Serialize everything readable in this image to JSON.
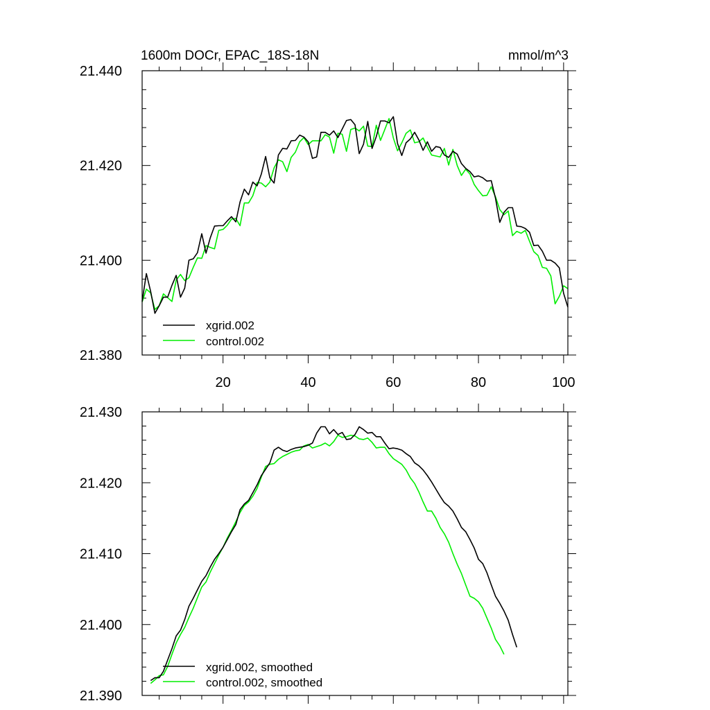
{
  "chart_data": [
    {
      "type": "line",
      "title": "1600m DOCr, EPAC_18S-18N",
      "units": "mmol/m^3",
      "xlim": [
        1,
        101
      ],
      "ylim": [
        21.38,
        21.44
      ],
      "xticks": [
        20,
        40,
        60,
        80,
        100
      ],
      "xtick_labels": [
        "20",
        "40",
        "60",
        "80",
        "100"
      ],
      "yticks": [
        21.38,
        21.4,
        21.42,
        21.44
      ],
      "ytick_labels": [
        "21.380",
        "21.400",
        "21.420",
        "21.440"
      ],
      "legend_position": "bottom-left",
      "series": [
        {
          "name": "xgrid.002",
          "color": "#000000",
          "x_start": 1,
          "values": [
            21.3913,
            21.3972,
            21.3934,
            21.3888,
            21.3904,
            21.3922,
            21.3922,
            21.3947,
            21.3968,
            21.3922,
            21.3941,
            21.4,
            21.4003,
            21.4016,
            21.4056,
            21.4015,
            21.4047,
            21.4072,
            21.4073,
            21.4073,
            21.4083,
            21.4092,
            21.4081,
            21.4123,
            21.415,
            21.4138,
            21.4165,
            21.4157,
            21.4182,
            21.4219,
            21.4174,
            21.4163,
            21.4222,
            21.4236,
            21.4235,
            21.4252,
            21.4253,
            21.4264,
            21.426,
            21.425,
            21.4215,
            21.4218,
            21.427,
            21.427,
            21.4264,
            21.4273,
            21.4259,
            21.4277,
            21.4295,
            21.4297,
            21.4286,
            21.4225,
            21.4245,
            21.4293,
            21.4236,
            21.4261,
            21.4294,
            21.4294,
            21.429,
            21.4303,
            21.4246,
            21.4221,
            21.4248,
            21.4256,
            21.427,
            21.4254,
            21.4232,
            21.425,
            21.423,
            21.424,
            21.4238,
            21.4222,
            21.4217,
            21.423,
            21.4224,
            21.4204,
            21.4194,
            21.4187,
            21.4176,
            21.4178,
            21.4174,
            21.4167,
            21.4168,
            21.4131,
            21.408,
            21.4101,
            21.4111,
            21.4111,
            21.4072,
            21.4071,
            21.4067,
            21.4059,
            21.4031,
            21.4032,
            21.4019,
            21.4,
            21.4,
            21.3994,
            21.3984,
            21.393,
            21.3901
          ]
        },
        {
          "name": "control.002",
          "color": "#00ee00",
          "x_start": 1,
          "values": [
            21.3912,
            21.3939,
            21.3931,
            21.3896,
            21.3904,
            21.3929,
            21.3921,
            21.3913,
            21.3958,
            21.397,
            21.3957,
            21.3963,
            21.3985,
            21.4005,
            21.4004,
            21.4031,
            21.4027,
            21.4024,
            21.4063,
            21.4065,
            21.4074,
            21.4087,
            21.4088,
            21.4073,
            21.4121,
            21.4121,
            21.4136,
            21.4164,
            21.4163,
            21.4155,
            21.4165,
            21.4195,
            21.4212,
            21.4208,
            21.4187,
            21.4217,
            21.4228,
            21.425,
            21.4259,
            21.4244,
            21.4252,
            21.4252,
            21.4252,
            21.4265,
            21.426,
            21.4226,
            21.4268,
            21.4266,
            21.423,
            21.4276,
            21.4279,
            21.4273,
            21.4283,
            21.4241,
            21.424,
            21.4285,
            21.4253,
            21.4276,
            21.4299,
            21.4258,
            21.4231,
            21.4248,
            21.4268,
            21.4275,
            21.4248,
            21.425,
            21.4258,
            21.4239,
            21.4222,
            21.422,
            21.4218,
            21.4236,
            21.4201,
            21.4234,
            21.42,
            21.4179,
            21.4192,
            21.4182,
            21.416,
            21.4147,
            21.4136,
            21.4137,
            21.4155,
            21.4134,
            21.4107,
            21.4096,
            21.4104,
            21.4052,
            21.4061,
            21.4057,
            21.4063,
            21.404,
            21.4018,
            21.401,
            21.3985,
            21.3983,
            21.3967,
            21.3908,
            21.3924,
            21.3946,
            21.394
          ]
        }
      ]
    },
    {
      "type": "line",
      "title": "",
      "xlim": [
        1,
        101
      ],
      "ylim": [
        21.39,
        21.43
      ],
      "xticks": [
        20,
        40,
        60,
        80,
        100
      ],
      "xtick_labels": [],
      "yticks": [
        21.39,
        21.4,
        21.41,
        21.42,
        21.43
      ],
      "ytick_labels": [
        "21.390",
        "21.400",
        "21.410",
        "21.420",
        "21.430"
      ],
      "legend_position": "bottom-left",
      "series": [
        {
          "name": "xgrid.002, smoothed",
          "color": "#000000",
          "x_start": 3,
          "values": [
            21.3921,
            21.3925,
            21.3925,
            21.3934,
            21.395,
            21.3966,
            21.3984,
            21.3992,
            21.4007,
            21.4026,
            21.4037,
            21.4049,
            21.4061,
            21.4069,
            21.4081,
            21.4092,
            21.41,
            21.4109,
            21.412,
            21.4131,
            21.4141,
            21.4162,
            21.417,
            21.4175,
            21.4186,
            21.4197,
            21.421,
            21.4219,
            21.4228,
            21.4246,
            21.425,
            21.4246,
            21.4244,
            21.4247,
            21.4249,
            21.425,
            21.4251,
            21.4253,
            21.4256,
            21.427,
            21.4279,
            21.4279,
            21.4269,
            21.4275,
            21.4268,
            21.4271,
            21.4261,
            21.4262,
            21.4268,
            21.4279,
            21.4275,
            21.427,
            21.4271,
            21.4265,
            21.4265,
            21.4256,
            21.4248,
            21.4249,
            21.4248,
            21.4246,
            21.4241,
            21.4237,
            21.4228,
            21.4224,
            21.4218,
            21.421,
            21.4201,
            21.4191,
            21.4181,
            21.4172,
            21.4167,
            21.416,
            21.4149,
            21.4137,
            21.4131,
            21.412,
            21.4108,
            21.4092,
            21.4086,
            21.4073,
            21.4056,
            21.404,
            21.403,
            21.4019,
            21.4006,
            21.3986,
            21.3968
          ]
        },
        {
          "name": "control.002, smoothed",
          "color": "#00ee00",
          "x_start": 3,
          "values": [
            21.3917,
            21.3922,
            21.3928,
            21.3929,
            21.3941,
            21.3958,
            21.3974,
            21.3986,
            21.3996,
            21.401,
            21.4023,
            21.4038,
            21.4053,
            21.406,
            21.4074,
            21.4086,
            21.4098,
            21.4109,
            21.4122,
            21.4133,
            21.4145,
            21.4158,
            21.4168,
            21.4173,
            21.4181,
            21.4192,
            21.4208,
            21.4223,
            21.4226,
            21.4227,
            21.4233,
            21.4237,
            21.424,
            21.4243,
            21.4245,
            21.4246,
            21.4252,
            21.4254,
            21.4249,
            21.4251,
            21.4253,
            21.4256,
            21.4252,
            21.4258,
            21.4267,
            21.4264,
            21.4265,
            21.4267,
            21.4266,
            21.4262,
            21.4261,
            21.4263,
            21.4257,
            21.4249,
            21.425,
            21.425,
            21.4241,
            21.4234,
            21.423,
            21.4226,
            21.4218,
            21.4207,
            21.4199,
            21.4187,
            21.4173,
            21.416,
            21.416,
            21.415,
            21.4137,
            21.4128,
            21.4116,
            21.41,
            21.4085,
            21.4072,
            21.4056,
            21.404,
            21.4037,
            21.4032,
            21.4023,
            21.4009,
            21.3995,
            21.3979,
            21.397,
            21.3958
          ]
        }
      ]
    }
  ]
}
